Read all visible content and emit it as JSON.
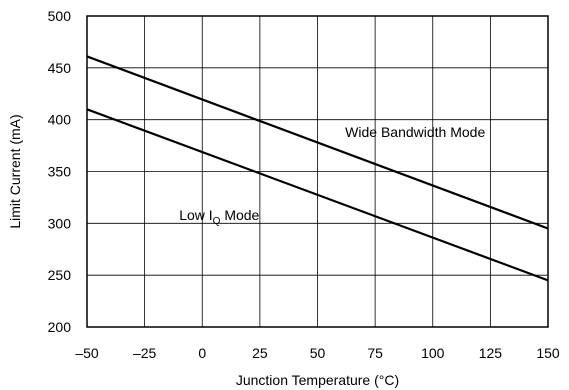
{
  "chart_data": {
    "type": "line",
    "title": "",
    "xlabel": "Junction Temperature (°C)",
    "ylabel": "Limit Current (mA)",
    "xlim": [
      -50,
      150
    ],
    "ylim": [
      200,
      500
    ],
    "x_ticks": [
      -50,
      -25,
      0,
      25,
      50,
      75,
      100,
      125,
      150
    ],
    "x_tick_labels": [
      "–50",
      "–25",
      "0",
      "25",
      "50",
      "75",
      "100",
      "125",
      "150"
    ],
    "y_ticks": [
      200,
      250,
      300,
      350,
      400,
      450,
      500
    ],
    "y_tick_labels": [
      "200",
      "250",
      "300",
      "350",
      "400",
      "450",
      "500"
    ],
    "grid": true,
    "legend": "none",
    "series": [
      {
        "x": [
          -50,
          150
        ],
        "y": [
          461,
          295
        ],
        "color": "#000000"
      },
      {
        "x": [
          -50,
          150
        ],
        "y": [
          410,
          245
        ],
        "color": "#000000"
      }
    ],
    "annotations": [
      {
        "text": "Wide Bandwidth Mode",
        "x": 62,
        "y": 388
      },
      {
        "text_main": "Low I",
        "text_sub": "Q",
        "text_tail": " Mode",
        "x": -10,
        "y": 308
      }
    ]
  }
}
